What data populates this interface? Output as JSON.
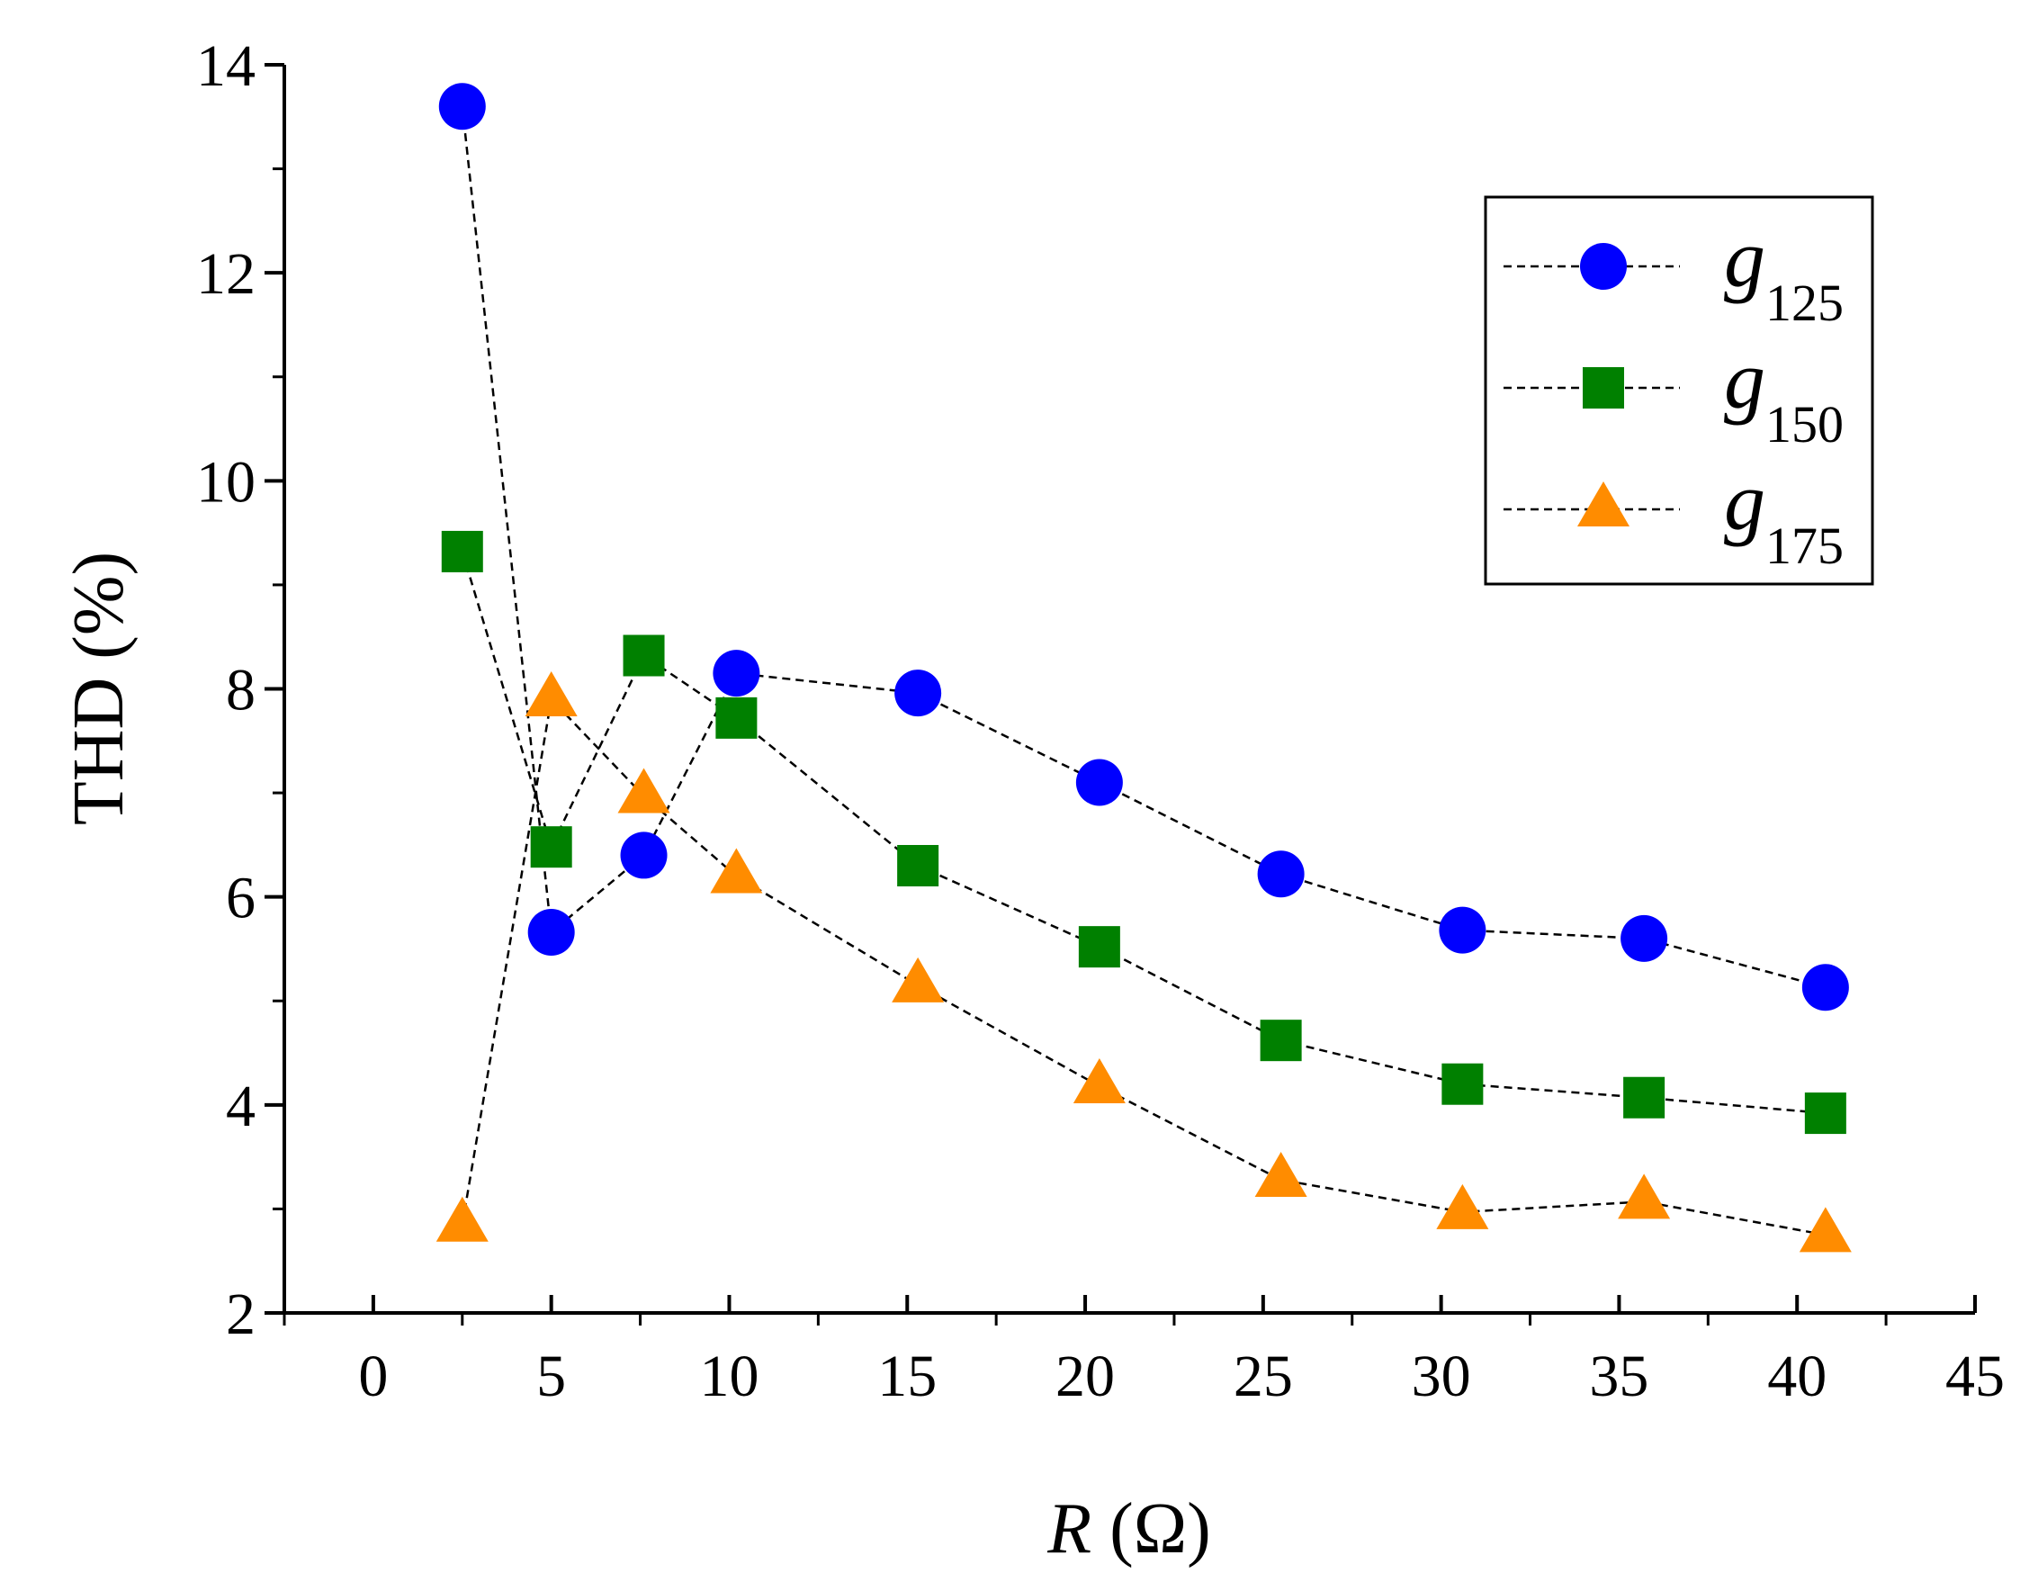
{
  "chart_data": {
    "type": "scatter",
    "title": "",
    "xlabel": {
      "italic": "R",
      "rest": " (Ω)"
    },
    "ylabel": "THD (%)",
    "xlim": [
      -2.5,
      45
    ],
    "ylim": [
      2,
      14
    ],
    "xticks": [
      0,
      5,
      10,
      15,
      20,
      25,
      30,
      35,
      40,
      45
    ],
    "xtick_labels": [
      "0",
      "5",
      "10",
      "15",
      "20",
      "25",
      "30",
      "35",
      "40",
      "45"
    ],
    "yticks": [
      2,
      4,
      6,
      8,
      10,
      12,
      14
    ],
    "ytick_labels": [
      "2",
      "4",
      "6",
      "8",
      "10",
      "12",
      "14"
    ],
    "grid": false,
    "legend_position": "top-right",
    "series": [
      {
        "name": "g125",
        "label_main": "g",
        "label_sub": "125",
        "marker": "circle",
        "color": "#0000ff",
        "line_style": "dashed",
        "x": [
          2.5,
          5.0,
          7.6,
          10.2,
          15.3,
          20.4,
          25.5,
          30.6,
          35.7,
          40.8
        ],
        "y": [
          13.6,
          5.66,
          6.4,
          8.15,
          7.96,
          7.1,
          6.22,
          5.68,
          5.6,
          5.13
        ]
      },
      {
        "name": "g150",
        "label_main": "g",
        "label_sub": "150",
        "marker": "square",
        "color": "#008000",
        "line_style": "dashed",
        "x": [
          2.5,
          5.0,
          7.6,
          10.2,
          15.3,
          20.4,
          25.5,
          30.6,
          35.7,
          40.8
        ],
        "y": [
          9.32,
          6.48,
          8.32,
          7.72,
          6.3,
          5.52,
          4.62,
          4.2,
          4.07,
          3.92
        ]
      },
      {
        "name": "g175",
        "label_main": "g",
        "label_sub": "175",
        "marker": "triangle",
        "color": "#ff8c00",
        "line_style": "dashed",
        "x": [
          2.5,
          5.0,
          7.6,
          10.2,
          15.3,
          20.4,
          25.5,
          30.6,
          35.7,
          40.8
        ],
        "y": [
          2.85,
          7.9,
          6.97,
          6.2,
          5.15,
          4.18,
          3.28,
          2.97,
          3.07,
          2.75
        ]
      }
    ]
  }
}
